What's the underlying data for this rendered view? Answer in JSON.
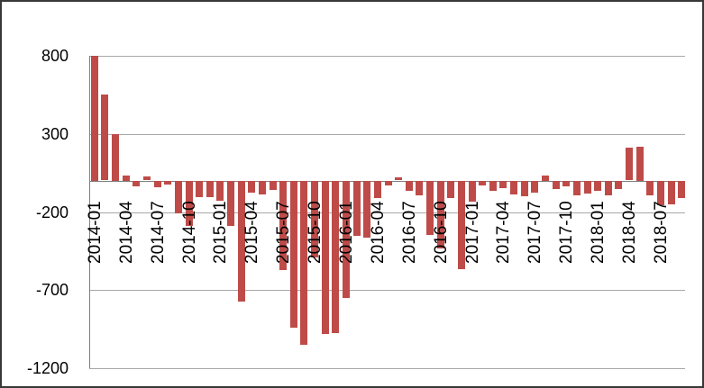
{
  "window": {
    "background_color": "#ffffff",
    "border_color": "#383838"
  },
  "chart_data": {
    "type": "bar",
    "title": "",
    "xlabel": "",
    "ylabel": "",
    "legend": "none",
    "grid": true,
    "bar_color": "#BE4B48",
    "gridline_color": "#a8a8a8",
    "axis_color": "#808080",
    "ylim": [
      -1200,
      800
    ],
    "y_ticks": [
      800,
      300,
      -200,
      -700,
      -1200
    ],
    "y_tick_labels": [
      "800",
      "300",
      "-200",
      "-700",
      "-1200"
    ],
    "x_tick_labels": [
      "2014-01",
      "2014-04",
      "2014-07",
      "2014-10",
      "2015-01",
      "2015-04",
      "2015-07",
      "2015-10",
      "2016-01",
      "2016-04",
      "2016-07",
      "2016-10",
      "2017-01",
      "2017-04",
      "2017-07",
      "2017-10",
      "2018-01",
      "2018-04",
      "2018-07"
    ],
    "x_tick_every": 3,
    "categories": [
      "2014-01",
      "2014-02",
      "2014-03",
      "2014-04",
      "2014-05",
      "2014-06",
      "2014-07",
      "2014-08",
      "2014-09",
      "2014-10",
      "2014-11",
      "2014-12",
      "2015-01",
      "2015-02",
      "2015-03",
      "2015-04",
      "2015-05",
      "2015-06",
      "2015-07",
      "2015-08",
      "2015-09",
      "2015-10",
      "2015-11",
      "2015-12",
      "2016-01",
      "2016-02",
      "2016-03",
      "2016-04",
      "2016-05",
      "2016-06",
      "2016-07",
      "2016-08",
      "2016-09",
      "2016-10",
      "2016-11",
      "2016-12",
      "2017-01",
      "2017-02",
      "2017-03",
      "2017-04",
      "2017-05",
      "2017-06",
      "2017-07",
      "2017-08",
      "2017-09",
      "2017-10",
      "2017-11",
      "2017-12",
      "2018-01",
      "2018-02",
      "2018-03",
      "2018-04",
      "2018-05",
      "2018-06",
      "2018-07",
      "2018-08",
      "2018-09"
    ],
    "values": [
      800,
      550,
      300,
      35,
      -35,
      25,
      -40,
      -25,
      -210,
      -290,
      -105,
      -105,
      -125,
      -290,
      -775,
      -75,
      -85,
      -60,
      -570,
      -940,
      -1050,
      -490,
      -980,
      -975,
      -750,
      -350,
      -365,
      -110,
      -30,
      20,
      -65,
      -90,
      -345,
      -430,
      -110,
      -565,
      -130,
      -30,
      -65,
      -45,
      -85,
      -100,
      -75,
      35,
      -50,
      -35,
      -90,
      -80,
      -65,
      -90,
      -50,
      210,
      220,
      -95,
      -155,
      -150,
      -110
    ]
  }
}
